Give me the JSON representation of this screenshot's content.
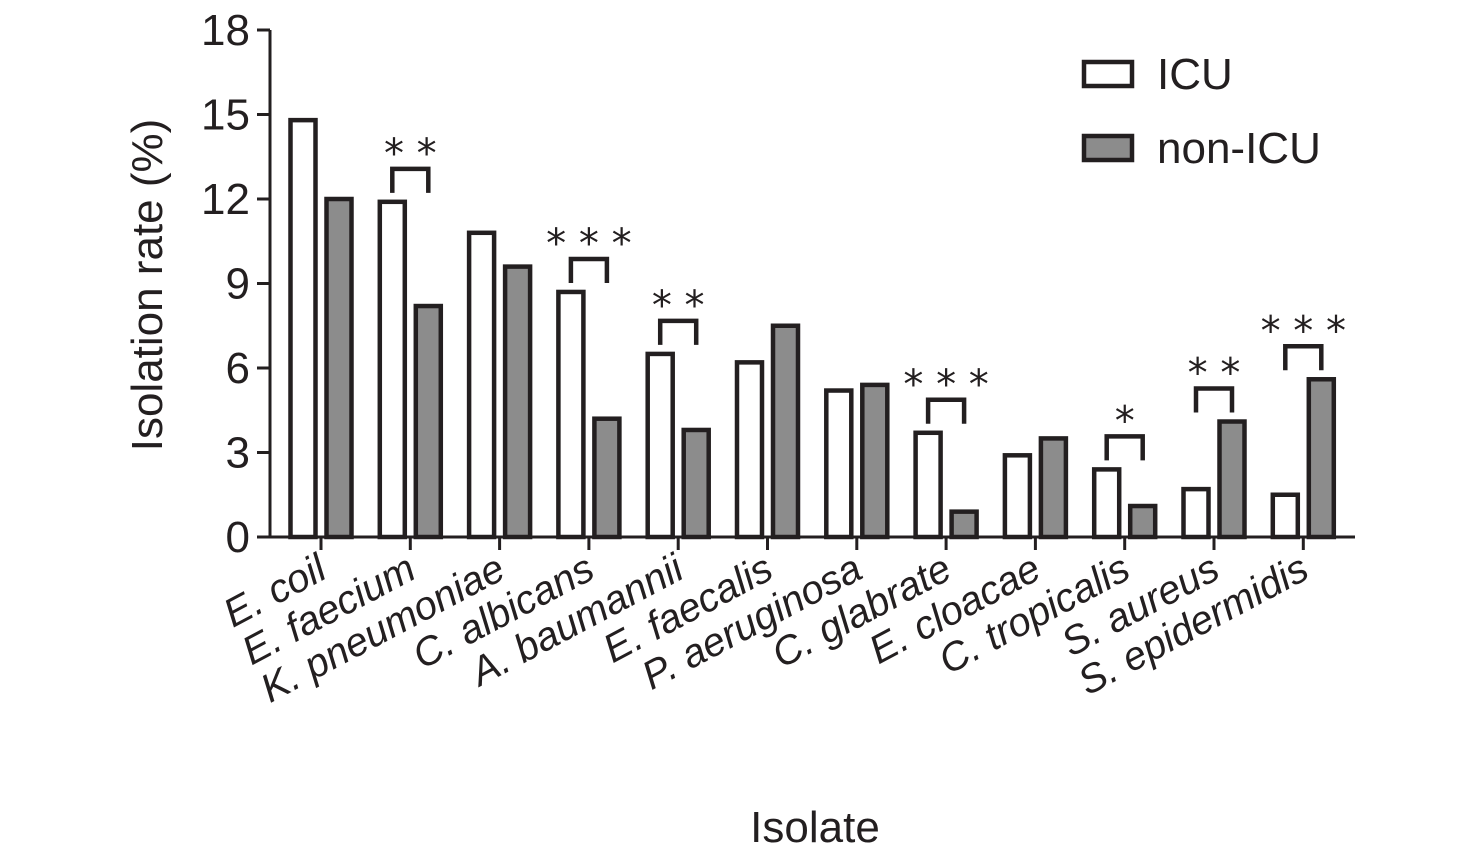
{
  "chart_data": {
    "type": "bar",
    "title": "",
    "xlabel": "Isolate",
    "ylabel": "Isolation rate (%)",
    "ylim": [
      0,
      18
    ],
    "yticks": [
      0,
      3,
      6,
      9,
      12,
      15,
      18
    ],
    "categories": [
      "E. coil",
      "E. faecium",
      "K. pneumoniae",
      "C. albicans",
      "A. baumannii",
      "E. faecalis",
      "P. aeruginosa",
      "C. glabrate",
      "E. cloacae",
      "C. tropicalis",
      "S. aureus",
      "S. epidermidis"
    ],
    "series": [
      {
        "name": "ICU",
        "color": "#ffffff",
        "values": [
          14.8,
          11.9,
          10.8,
          8.7,
          6.5,
          6.2,
          5.2,
          3.7,
          2.9,
          2.4,
          1.7,
          1.5
        ]
      },
      {
        "name": "non-ICU",
        "color": "#8c8c8c",
        "values": [
          12.0,
          8.2,
          9.6,
          4.2,
          3.8,
          7.5,
          5.4,
          0.9,
          3.5,
          1.1,
          4.1,
          5.6
        ]
      }
    ],
    "significance": [
      "",
      "**",
      "",
      "***",
      "**",
      "",
      "",
      "***",
      "",
      "*",
      "**",
      "***"
    ],
    "legend": {
      "position": "top-right"
    },
    "grid": false
  }
}
